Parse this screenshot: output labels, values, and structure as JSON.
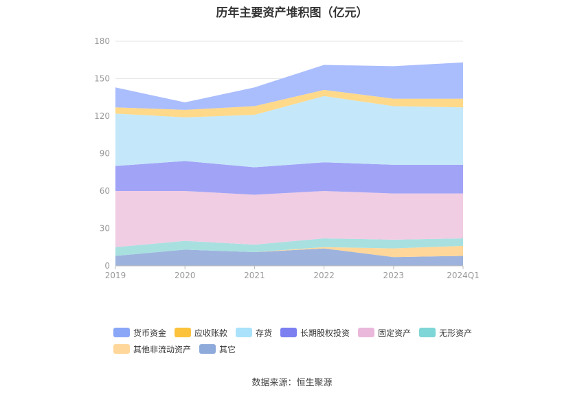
{
  "title": "历年主要资产堆积图（亿元）",
  "source": "数据来源：恒生聚源",
  "chart_data": {
    "type": "area",
    "stacked": true,
    "categories": [
      "2019",
      "2020",
      "2021",
      "2022",
      "2023",
      "2024Q1"
    ],
    "ylim": [
      0,
      180
    ],
    "yticks": [
      "0",
      "30",
      "60",
      "90",
      "120",
      "150",
      "180"
    ],
    "grid": true,
    "legend_position": "bottom",
    "series": [
      {
        "name": "其它",
        "color": "#9db3dd",
        "values": [
          8,
          13,
          11,
          14,
          7,
          8
        ]
      },
      {
        "name": "其他非流动资产",
        "color": "#ffd79a",
        "values": [
          0,
          0,
          0,
          1,
          7,
          8
        ]
      },
      {
        "name": "无形资产",
        "color": "#a8e0e0",
        "values": [
          7,
          7,
          6,
          7,
          7,
          6
        ]
      },
      {
        "name": "固定资产",
        "color": "#f0cde3",
        "values": [
          45,
          40,
          40,
          38,
          37,
          36
        ]
      },
      {
        "name": "长期股权投资",
        "color": "#a1a3f7",
        "values": [
          20,
          24,
          22,
          23,
          23,
          23
        ]
      },
      {
        "name": "存货",
        "color": "#c4e8fa",
        "values": [
          42,
          35,
          42,
          53,
          47,
          46
        ]
      },
      {
        "name": "应收账款",
        "color": "#ffd98a",
        "values": [
          5,
          6,
          7,
          5,
          6,
          7
        ]
      },
      {
        "name": "货币资金",
        "color": "#aabdfd",
        "values": [
          16,
          6,
          15,
          20,
          26,
          29
        ]
      }
    ],
    "legend": [
      {
        "name": "货币资金",
        "color": "#8aa7f7"
      },
      {
        "name": "应收账款",
        "color": "#fcc23b"
      },
      {
        "name": "存货",
        "color": "#a9e2fa"
      },
      {
        "name": "长期股权投资",
        "color": "#7b7ff0"
      },
      {
        "name": "固定资产",
        "color": "#eab8da"
      },
      {
        "name": "无形资产",
        "color": "#7fd6d6"
      },
      {
        "name": "其他非流动资产",
        "color": "#ffd79a"
      },
      {
        "name": "其它",
        "color": "#8eaadb"
      }
    ]
  }
}
